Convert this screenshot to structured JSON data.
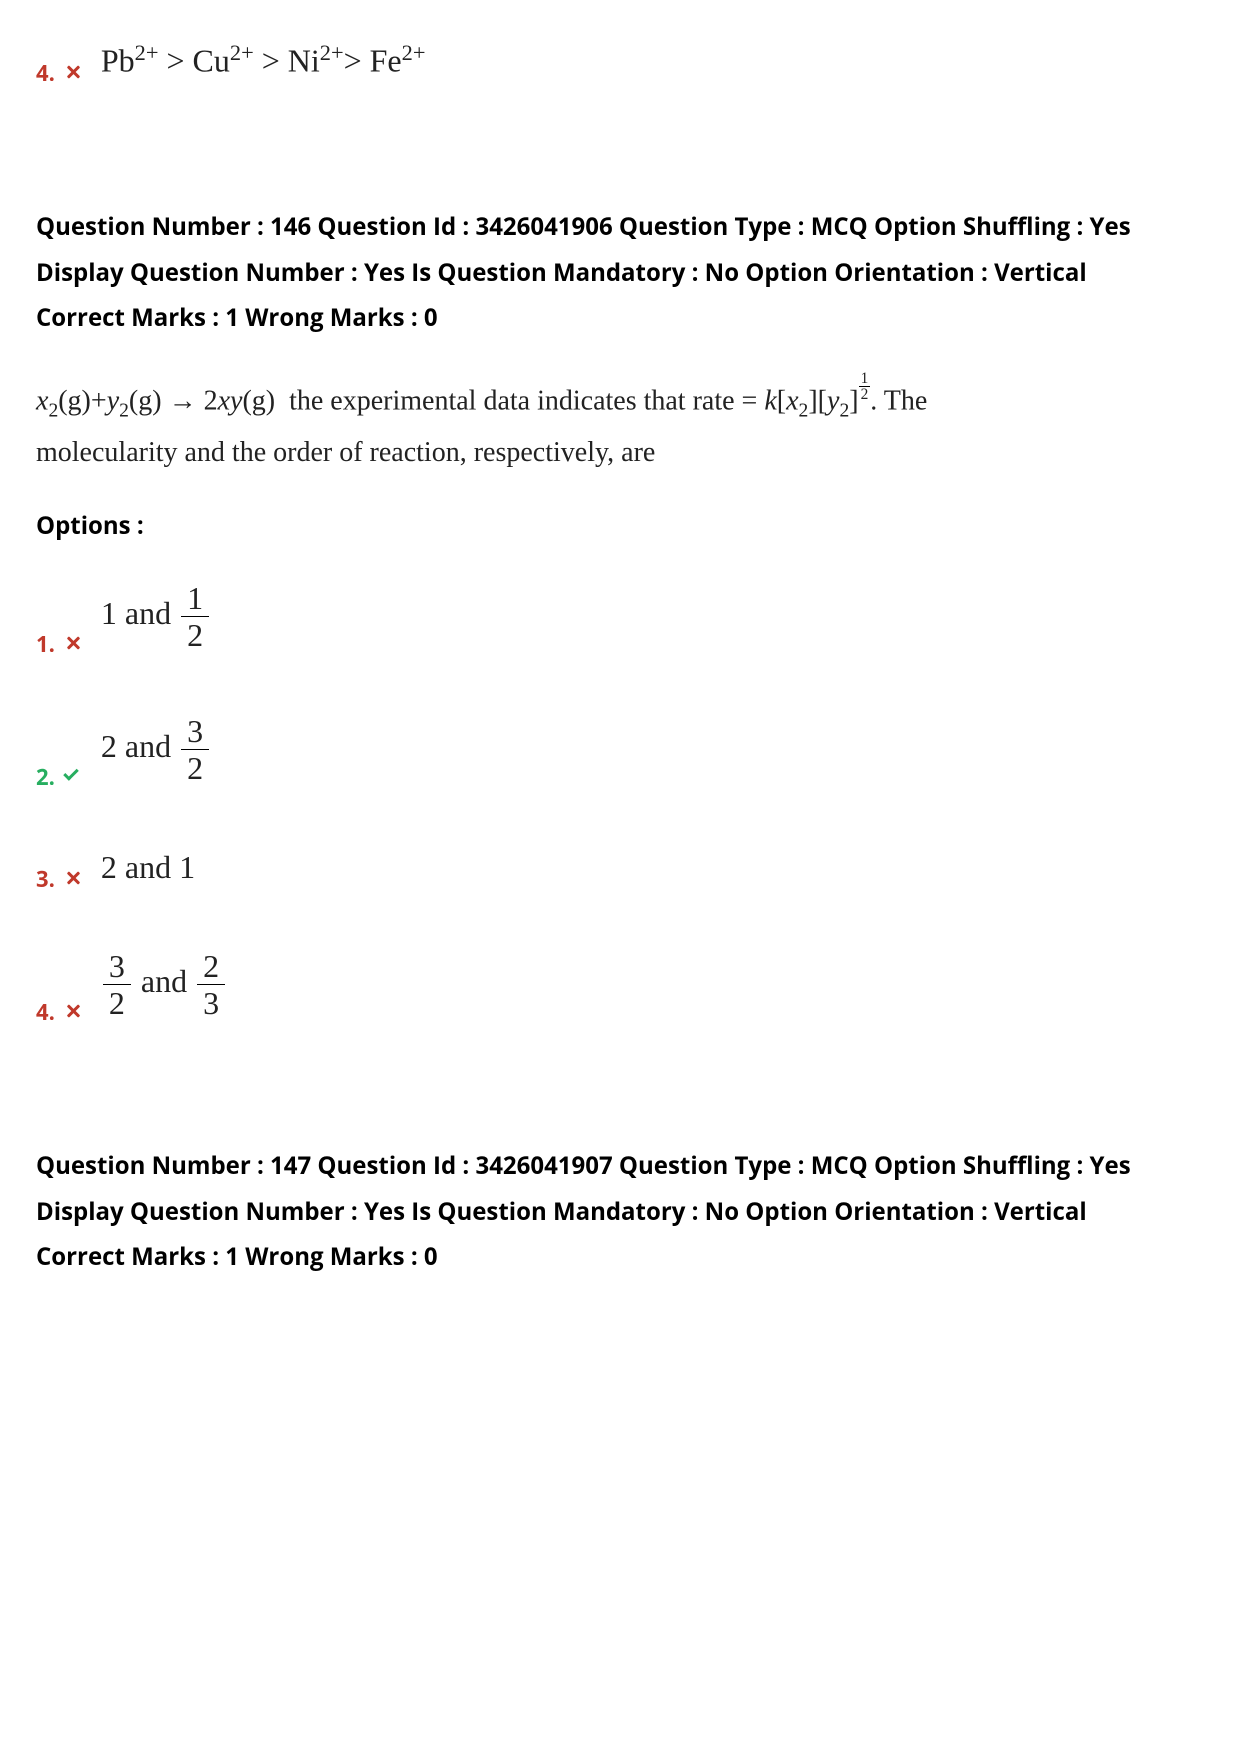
{
  "prev_option": {
    "number": "4.",
    "status": "wrong",
    "formula_html": "Pb<span class=\"sup\">2+</span> &gt; Cu<span class=\"sup\">2+</span> &gt; Ni<span class=\"sup\">2+</span>&gt; Fe<span class=\"sup\">2+</span>"
  },
  "q146": {
    "meta_lines": [
      "Question Number : 146 Question Id : 3426041906 Question Type : MCQ Option Shuffling : Yes",
      "Display Question Number : Yes Is Question Mandatory : No Option Orientation : Vertical",
      "Correct Marks : 1 Wrong Marks : 0"
    ],
    "body_html": "<i>x</i><span class=\"sub\">2</span>(g)+<i>y</i><span class=\"sub\">2</span>(g) → 2<i>xy</i>(g)&nbsp; the experimental data indicates that rate = <i>k</i>[<i>x</i><span class=\"sub\">2</span>][<i>y</i><span class=\"sub\">2</span>]<span class=\"exp-half\"><span class=\"n1\">1</span><span class=\"d1\">2</span></span>. The<br>molecularity and the order of reaction, respectively, are",
    "options_label": "Options :",
    "options": [
      {
        "num": "1.",
        "status": "wrong",
        "html": "1 and <span class=\"frac\"><span class=\"n\">1</span><span class=\"d\">2</span></span>"
      },
      {
        "num": "2.",
        "status": "correct",
        "html": "2 and <span class=\"frac\"><span class=\"n\">3</span><span class=\"d\">2</span></span>"
      },
      {
        "num": "3.",
        "status": "wrong",
        "html": "2 and 1"
      },
      {
        "num": "4.",
        "status": "wrong",
        "html": "<span class=\"frac\"><span class=\"n\">3</span><span class=\"d\">2</span></span> and <span class=\"frac\"><span class=\"n\">2</span><span class=\"d\">3</span></span>"
      }
    ]
  },
  "q147": {
    "meta_lines": [
      "Question Number : 147 Question Id : 3426041907 Question Type : MCQ Option Shuffling : Yes",
      "Display Question Number : Yes Is Question Mandatory : No Option Orientation : Vertical",
      "Correct Marks : 1 Wrong Marks : 0"
    ]
  },
  "colors": {
    "wrong": "#c0392b",
    "correct": "#27ae60",
    "text": "#000000",
    "formula_text": "#222222",
    "background": "#ffffff"
  }
}
